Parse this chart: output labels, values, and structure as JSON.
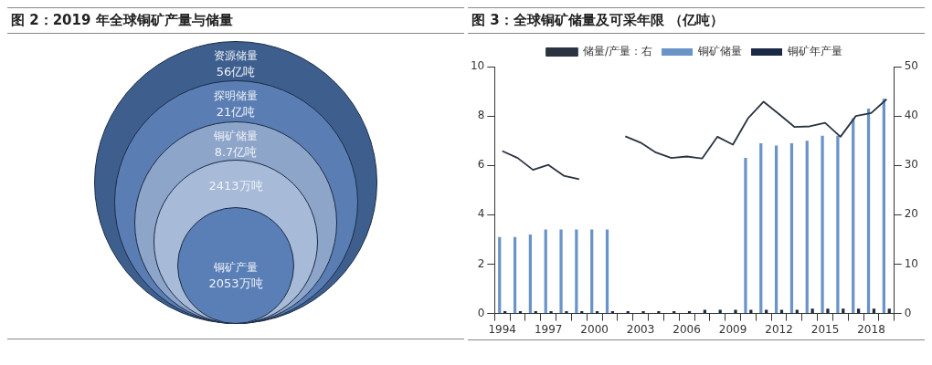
{
  "chart_data": [
    {
      "type": "other",
      "title": "图 2：2019 年全球铜矿产量与储量",
      "categories": [
        "资源储量",
        "探明储量",
        "铜矿储量",
        null,
        "铜矿产量"
      ],
      "annotations": [
        "56亿吨",
        "21亿吨",
        "8.7亿吨",
        "2413万吨",
        "2053万吨"
      ],
      "colors": [
        "#3e5f8e",
        "#5a7db3",
        "#8ea5ca",
        "#a7bad8",
        "#5a7fb7"
      ]
    },
    {
      "type": "bar",
      "title": "图 3：全球铜矿储量及可采年限 （亿吨）",
      "categories": [
        "1994",
        null,
        null,
        "1997",
        null,
        null,
        "2000",
        null,
        null,
        "2003",
        null,
        null,
        "2006",
        null,
        null,
        "2009",
        null,
        null,
        "2012",
        null,
        null,
        "2015",
        null,
        null,
        "2018",
        null
      ],
      "series": [
        {
          "name": "铜矿储量",
          "color": "#6a93c8",
          "values": [
            3.1,
            3.1,
            3.2,
            3.4,
            3.4,
            3.4,
            3.4,
            3.4,
            null,
            null,
            null,
            null,
            null,
            null,
            null,
            null,
            6.3,
            6.9,
            6.8,
            6.9,
            7.0,
            7.2,
            7.2,
            7.9,
            8.3,
            8.7
          ]
        },
        {
          "name": "铜矿年产量",
          "color": "#1a2a44",
          "values": [
            0.1,
            0.1,
            0.1,
            0.1,
            0.1,
            0.1,
            0.1,
            0.1,
            0.1,
            0.1,
            0.1,
            0.1,
            0.1,
            0.15,
            0.15,
            0.15,
            0.15,
            0.15,
            0.15,
            0.15,
            0.2,
            0.2,
            0.2,
            0.2,
            0.2,
            0.2
          ]
        },
        {
          "name": "储量/产量：右",
          "type": "line",
          "axis": "y2",
          "color": "#2b3340",
          "values": [
            32.9,
            31.5,
            29.1,
            30.1,
            27.9,
            27.2,
            null,
            null,
            35.9,
            34.6,
            32.6,
            31.5,
            31.8,
            31.4,
            35.8,
            34.2,
            39.6,
            42.9,
            40.4,
            37.8,
            37.9,
            38.6,
            35.8,
            40.0,
            40.6,
            43.4
          ]
        }
      ],
      "ylim": [
        0,
        10
      ],
      "yticks": [
        0,
        2,
        4,
        6,
        8,
        10
      ],
      "y2lim": [
        0,
        50
      ],
      "y2ticks": [
        0,
        10,
        20,
        30,
        40,
        50
      ],
      "grid": false,
      "legend": "top",
      "marker": "none"
    }
  ]
}
